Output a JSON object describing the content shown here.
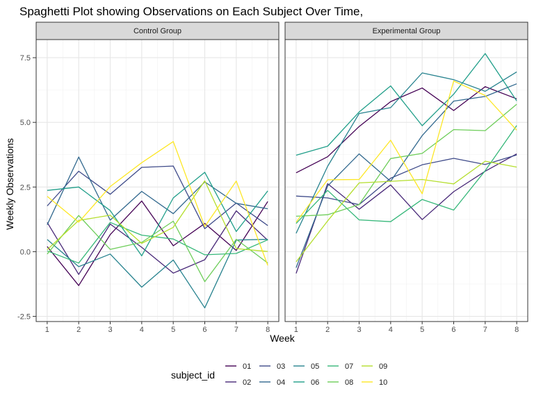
{
  "chart_data": {
    "type": "line",
    "title": "Spaghetti Plot showing Observations on Each Subject Over Time,",
    "xlabel": "Week",
    "ylabel": "Weekly Observations",
    "x": [
      1,
      2,
      3,
      4,
      5,
      6,
      7,
      8
    ],
    "x_ticks": [
      "1",
      "2",
      "3",
      "4",
      "5",
      "6",
      "7",
      "8"
    ],
    "ylim": [
      -2.7,
      8.2
    ],
    "y_ticks": [
      -2.5,
      0.0,
      2.5,
      5.0,
      7.5
    ],
    "y_tick_labels": [
      "-2.5",
      "0.0",
      "2.5",
      "5.0",
      "7.5"
    ],
    "grid": true,
    "legend": {
      "title": "subject_id",
      "placement": "bottom"
    },
    "panels": [
      {
        "label": "Control Group",
        "series": [
          {
            "name": "01",
            "color": "#440154",
            "values": [
              0.2,
              -1.31,
              0.66,
              1.96,
              0.23,
              1.09,
              0.05,
              1.94
            ]
          },
          {
            "name": "02",
            "color": "#482878",
            "values": [
              1.13,
              -0.88,
              1.07,
              0.17,
              -0.83,
              -0.31,
              1.58,
              0.44
            ]
          },
          {
            "name": "03",
            "color": "#3E4A89",
            "values": [
              1.77,
              3.11,
              2.22,
              3.26,
              3.31,
              0.89,
              1.88,
              1.01
            ]
          },
          {
            "name": "04",
            "color": "#31688E",
            "values": [
              1.04,
              3.66,
              1.22,
              2.33,
              1.47,
              2.7,
              1.87,
              1.66
            ]
          },
          {
            "name": "05",
            "color": "#26828E",
            "values": [
              0.47,
              -0.58,
              -0.09,
              -1.37,
              -0.32,
              -2.17,
              0.45,
              0.48
            ]
          },
          {
            "name": "06",
            "color": "#1F9E89",
            "values": [
              2.37,
              2.5,
              1.59,
              -0.16,
              2.08,
              3.07,
              0.78,
              2.35
            ]
          },
          {
            "name": "07",
            "color": "#35B779",
            "values": [
              0.03,
              -0.44,
              1.13,
              0.64,
              0.49,
              -0.12,
              -0.07,
              0.46
            ]
          },
          {
            "name": "08",
            "color": "#6DCD59",
            "values": [
              -0.09,
              1.4,
              0.09,
              0.36,
              1.18,
              -1.16,
              0.48,
              -0.44
            ]
          },
          {
            "name": "09",
            "color": "#B4DE2C",
            "values": [
              0.08,
              1.21,
              1.41,
              0.32,
              0.94,
              2.74,
              0.12,
              0.01
            ]
          },
          {
            "name": "10",
            "color": "#FDE725",
            "values": [
              2.14,
              1.14,
              2.52,
              3.44,
              4.26,
              0.97,
              2.73,
              -0.53
            ]
          }
        ]
      },
      {
        "label": "Experimental Group",
        "series": [
          {
            "name": "01",
            "color": "#440154",
            "values": [
              3.05,
              3.67,
              4.84,
              5.8,
              6.33,
              5.46,
              6.38,
              5.91
            ]
          },
          {
            "name": "02",
            "color": "#482878",
            "values": [
              -0.84,
              2.63,
              1.64,
              2.58,
              1.24,
              2.32,
              3.11,
              3.78
            ]
          },
          {
            "name": "03",
            "color": "#3E4A89",
            "values": [
              2.15,
              2.08,
              1.82,
              2.84,
              3.36,
              3.61,
              3.37,
              3.74
            ]
          },
          {
            "name": "04",
            "color": "#31688E",
            "values": [
              -0.62,
              2.54,
              3.78,
              2.72,
              4.49,
              5.82,
              6.0,
              6.49
            ]
          },
          {
            "name": "05",
            "color": "#26828E",
            "values": [
              0.71,
              3.3,
              5.34,
              5.57,
              6.91,
              6.65,
              6.2,
              6.95
            ]
          },
          {
            "name": "06",
            "color": "#1F9E89",
            "values": [
              3.73,
              4.08,
              5.4,
              6.41,
              4.87,
              6.09,
              7.66,
              5.83
            ]
          },
          {
            "name": "07",
            "color": "#35B779",
            "values": [
              1.09,
              2.37,
              1.23,
              1.16,
              2.02,
              1.61,
              3.13,
              4.88
            ]
          },
          {
            "name": "08",
            "color": "#6DCD59",
            "values": [
              1.37,
              1.43,
              1.82,
              3.6,
              3.8,
              4.72,
              4.68,
              5.7
            ]
          },
          {
            "name": "09",
            "color": "#B4DE2C",
            "values": [
              -0.39,
              1.19,
              2.66,
              2.72,
              2.79,
              2.62,
              3.5,
              3.27
            ]
          },
          {
            "name": "10",
            "color": "#FDE725",
            "values": [
              1.14,
              2.78,
              2.79,
              4.31,
              2.24,
              6.6,
              6.04,
              4.7
            ]
          }
        ]
      }
    ]
  }
}
